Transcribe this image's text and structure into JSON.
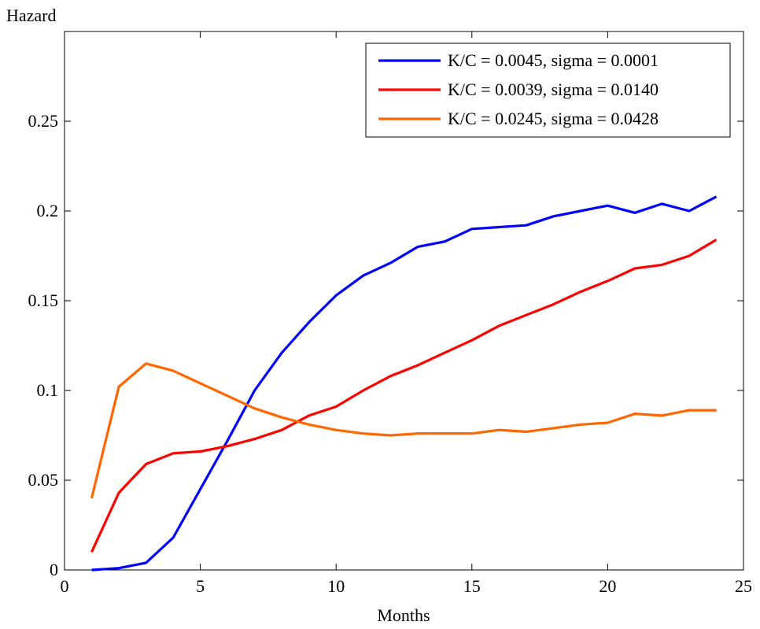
{
  "chart_data": {
    "type": "line",
    "ylabel": "Hazard",
    "xlabel": "Months",
    "xlim": [
      0,
      25
    ],
    "ylim": [
      0,
      0.3
    ],
    "xticks": [
      0,
      5,
      10,
      15,
      20,
      25
    ],
    "xtick_labels": [
      "0",
      "5",
      "10",
      "15",
      "20",
      "25"
    ],
    "yticks": [
      0,
      0.05,
      0.1,
      0.15,
      0.2,
      0.25
    ],
    "ytick_labels": [
      "0",
      "0.05",
      "0.1",
      "0.15",
      "0.2",
      "0.25"
    ],
    "grid": false,
    "legend_position": "top-right",
    "x": [
      1,
      2,
      3,
      4,
      5,
      6,
      7,
      8,
      9,
      10,
      11,
      12,
      13,
      14,
      15,
      16,
      17,
      18,
      19,
      20,
      21,
      22,
      23,
      24
    ],
    "series": [
      {
        "name": "K/C = 0.0045, sigma = 0.0001",
        "color": "#0000ff",
        "values": [
          0.0,
          0.001,
          0.004,
          0.018,
          0.045,
          0.072,
          0.1,
          0.121,
          0.138,
          0.153,
          0.164,
          0.171,
          0.18,
          0.183,
          0.19,
          0.191,
          0.192,
          0.197,
          0.2,
          0.203,
          0.199,
          0.204,
          0.2,
          0.208
        ]
      },
      {
        "name": "K/C = 0.0039, sigma = 0.0140",
        "color": "#ff0000",
        "values": [
          0.01,
          0.043,
          0.059,
          0.065,
          0.066,
          0.069,
          0.073,
          0.078,
          0.086,
          0.091,
          0.1,
          0.108,
          0.114,
          0.121,
          0.128,
          0.136,
          0.142,
          0.148,
          0.155,
          0.161,
          0.168,
          0.17,
          0.175,
          0.184
        ]
      },
      {
        "name": "K/C = 0.0245, sigma = 0.0428",
        "color": "#ff6600",
        "values": [
          0.04,
          0.102,
          0.115,
          0.111,
          0.104,
          0.097,
          0.09,
          0.085,
          0.081,
          0.078,
          0.076,
          0.075,
          0.076,
          0.076,
          0.076,
          0.078,
          0.077,
          0.079,
          0.081,
          0.082,
          0.087,
          0.086,
          0.089,
          0.089
        ]
      }
    ]
  }
}
